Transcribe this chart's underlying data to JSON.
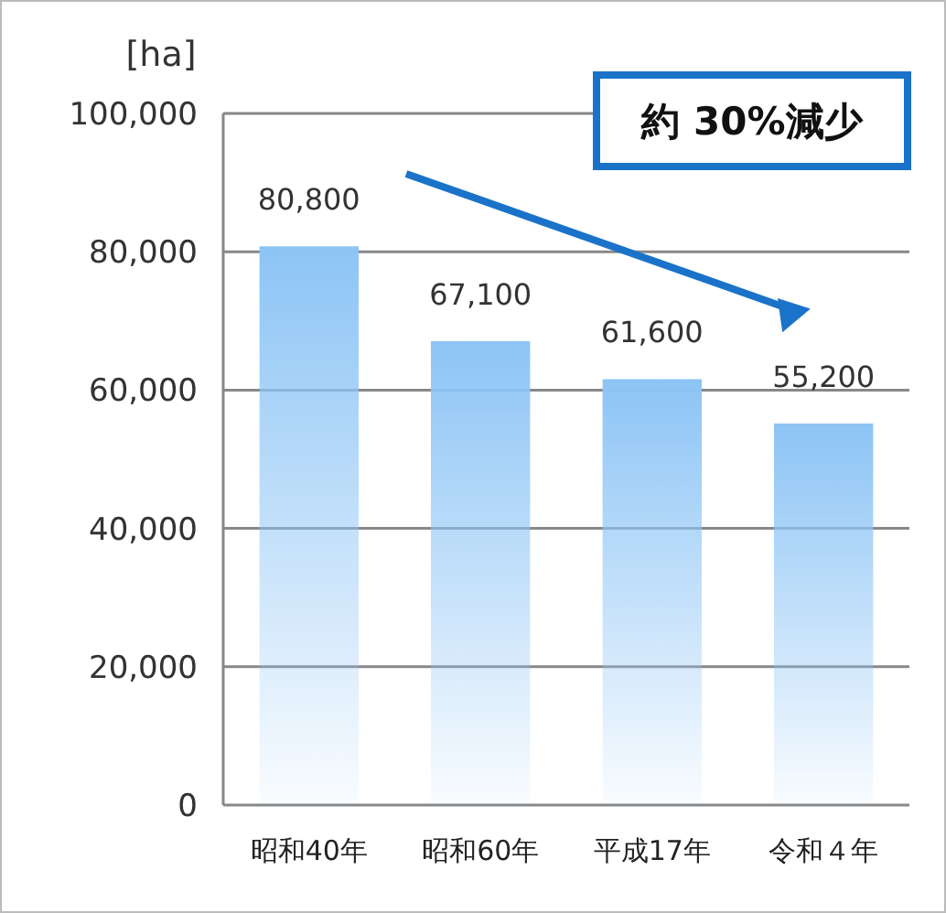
{
  "chart_data": {
    "type": "bar",
    "ylabel": "[ha]",
    "categories": [
      "昭和40年",
      "昭和60年",
      "平成17年",
      "令和４年"
    ],
    "values": [
      80800,
      67100,
      61600,
      55200
    ],
    "color": "#8cc4f5",
    "value_labels": [
      "80,800",
      "67,100",
      "61,600",
      "55,200"
    ],
    "ylim": [
      0,
      100000
    ],
    "yticks": [
      {
        "value": 0,
        "label": "0"
      },
      {
        "value": 20000,
        "label": "20,000"
      },
      {
        "value": 40000,
        "label": "40,000"
      },
      {
        "value": 60000,
        "label": "60,000"
      },
      {
        "value": 80000,
        "label": "80,000"
      },
      {
        "value": 100000,
        "label": "100,000"
      }
    ],
    "grid": "y",
    "annotations": [
      "約 30%減少"
    ]
  }
}
